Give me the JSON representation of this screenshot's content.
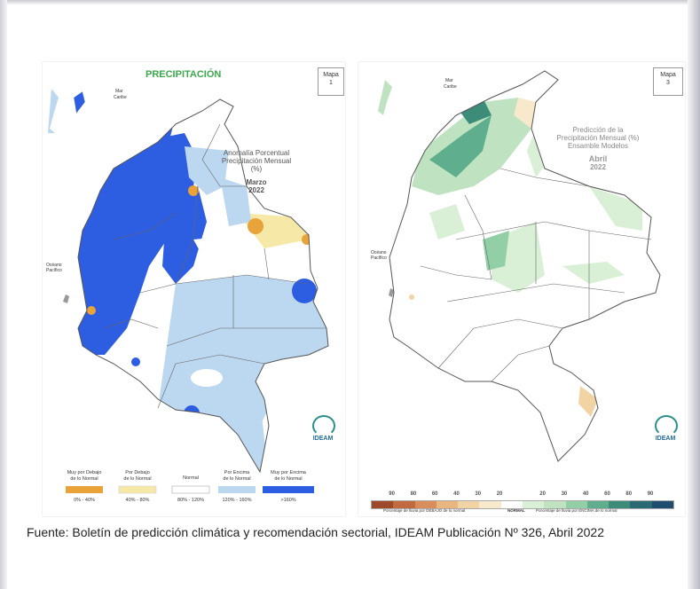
{
  "left_map": {
    "title": "PRECIPITACIÓN",
    "map_label": "Mapa",
    "map_number": "1",
    "subtitle_line1": "Anomalía Porcentual",
    "subtitle_line2": "Precipitación Mensual",
    "subtitle_line3": "(%)",
    "month": "Marzo",
    "year": "2022",
    "sea_label_1": "Mar",
    "sea_label_2": "Caribe",
    "ocean_label_1": "Océano",
    "ocean_label_2": "Pacífico",
    "logo_text": "IDEAM",
    "legend": [
      {
        "label_1": "Muy por Debajo",
        "label_2": "de lo Normal",
        "range": "0% - 40%",
        "color": "#e8a33a"
      },
      {
        "label_1": "Por Debajo",
        "label_2": "de lo Normal",
        "range": "40% - 80%",
        "color": "#f6e9a8"
      },
      {
        "label_1": "Normal",
        "label_2": "",
        "range": "80% - 120%",
        "color": "#ffffff"
      },
      {
        "label_1": "Por Encima",
        "label_2": "de lo Normal",
        "range": "120% - 160%",
        "color": "#bcd7f0"
      },
      {
        "label_1": "Muy por Encima",
        "label_2": "de lo Normal",
        "range": ">160%",
        "color": "#2d5de0"
      }
    ]
  },
  "right_map": {
    "map_label": "Mapa",
    "map_number": "3",
    "title_line1": "Predicción de la",
    "title_line2": "Precipitación Mensual (%)",
    "title_line3": "Ensamble Modelos",
    "month": "Abril",
    "year": "2022",
    "sea_label_1": "Mar",
    "sea_label_2": "Caribe",
    "ocean_label_1": "Océano",
    "ocean_label_2": "Pacífico",
    "logo_text": "IDEAM",
    "scale_numbers": [
      "90",
      "80",
      "60",
      "40",
      "30",
      "20",
      "20",
      "30",
      "40",
      "60",
      "80",
      "90"
    ],
    "scale_colors": [
      "#9c4a2a",
      "#c26a3f",
      "#d98e5a",
      "#e9b67f",
      "#f2d4a4",
      "#f8e8cc",
      "#ffffff",
      "#d9efd6",
      "#bfe3c0",
      "#93cfa6",
      "#5fae8d",
      "#3d8c7a",
      "#2a6a72",
      "#1e4d70"
    ],
    "below_text": "Porcentaje de lluvia por DEBAJO de lo normal",
    "normal_text": "NORMAL",
    "above_text": "Porcentaje de lluvia por ENCIMA de lo normal"
  },
  "caption": "Fuente: Boletín de predicción climática y recomendación sectorial, IDEAM Publicación Nº 326, Abril 2022"
}
